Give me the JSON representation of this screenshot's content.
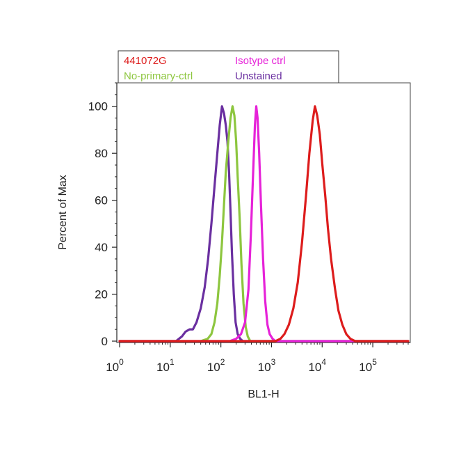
{
  "chart_data": {
    "type": "line",
    "title": "",
    "xlabel": "BL1-H",
    "ylabel": "Percent of Max",
    "x_scale": "log",
    "xlim": [
      1,
      500000
    ],
    "ylim": [
      0,
      110
    ],
    "x_ticks": [
      {
        "value": 1,
        "base": "10",
        "exp": "0"
      },
      {
        "value": 10,
        "base": "10",
        "exp": "1"
      },
      {
        "value": 100,
        "base": "10",
        "exp": "2"
      },
      {
        "value": 1000,
        "base": "10",
        "exp": "3"
      },
      {
        "value": 10000,
        "base": "10",
        "exp": "4"
      },
      {
        "value": 100000,
        "base": "10",
        "exp": "5"
      }
    ],
    "y_ticks": [
      {
        "value": 0,
        "label": "0"
      },
      {
        "value": 20,
        "label": "20"
      },
      {
        "value": 40,
        "label": "40"
      },
      {
        "value": 60,
        "label": "60"
      },
      {
        "value": 80,
        "label": "80"
      },
      {
        "value": 100,
        "label": "100"
      }
    ],
    "grid": false,
    "legend_position": "top-left, above plot",
    "series": [
      {
        "name": "Unstained",
        "color": "#6a2fa0",
        "x": [
          1,
          13,
          17,
          20,
          24,
          28,
          33,
          40,
          48,
          56,
          65,
          75,
          85,
          95,
          105,
          115,
          125,
          135,
          145,
          155,
          165,
          180,
          195,
          215,
          240,
          270,
          300,
          500000
        ],
        "y": [
          0,
          0,
          2,
          4,
          5,
          5,
          8,
          14,
          23,
          35,
          50,
          66,
          80,
          92,
          100,
          97,
          92,
          85,
          72,
          55,
          38,
          20,
          8,
          3,
          1,
          0,
          0,
          0
        ]
      },
      {
        "name": "No-primary-ctrl",
        "color": "#8dc63f",
        "x": [
          1,
          40,
          55,
          65,
          75,
          85,
          95,
          105,
          115,
          125,
          140,
          155,
          170,
          185,
          200,
          215,
          235,
          255,
          280,
          310,
          340,
          380,
          500000
        ],
        "y": [
          0,
          0,
          1,
          3,
          8,
          16,
          28,
          42,
          58,
          72,
          85,
          95,
          100,
          96,
          85,
          70,
          52,
          33,
          16,
          6,
          2,
          0,
          0
        ]
      },
      {
        "name": "Isotype ctrl",
        "color": "#e622d8",
        "x": [
          1,
          150,
          200,
          250,
          300,
          350,
          390,
          430,
          470,
          500,
          530,
          570,
          620,
          680,
          750,
          830,
          920,
          1050,
          1200,
          1400,
          500000
        ],
        "y": [
          0,
          0,
          1,
          3,
          8,
          22,
          45,
          70,
          92,
          100,
          95,
          80,
          58,
          35,
          17,
          7,
          3,
          1,
          0,
          0,
          0
        ]
      },
      {
        "name": "441072G",
        "color": "#dd1c1c",
        "x": [
          1,
          1200,
          1500,
          1800,
          2200,
          2700,
          3300,
          4000,
          4800,
          5600,
          6500,
          7200,
          8000,
          9000,
          10000,
          11500,
          13000,
          15000,
          18000,
          21000,
          25000,
          30000,
          36000,
          45000,
          60000,
          100000,
          500000
        ],
        "y": [
          0,
          0,
          1,
          3,
          7,
          14,
          25,
          42,
          62,
          80,
          94,
          100,
          96,
          88,
          76,
          62,
          48,
          35,
          22,
          13,
          7,
          3,
          1,
          0,
          0,
          0,
          0
        ]
      }
    ],
    "legend": [
      {
        "label": "441072G",
        "color": "#dd1c1c"
      },
      {
        "label": "Isotype ctrl",
        "color": "#e622d8"
      },
      {
        "label": "No-primary-ctrl",
        "color": "#8dc63f"
      },
      {
        "label": "Unstained",
        "color": "#6a2fa0"
      }
    ]
  }
}
